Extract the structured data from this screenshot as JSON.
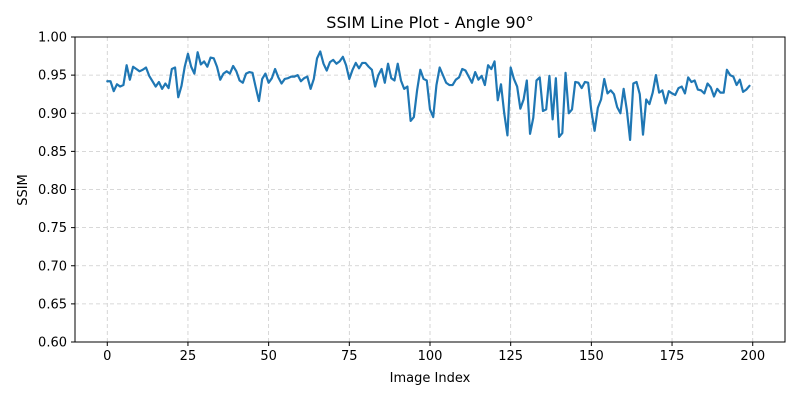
{
  "chart_data": {
    "type": "line",
    "title": "SSIM Line Plot - Angle 90°",
    "xlabel": "Image Index",
    "ylabel": "SSIM",
    "xlim": [
      -10,
      210
    ],
    "ylim": [
      0.6,
      1.0
    ],
    "xticks": [
      0,
      25,
      50,
      75,
      100,
      125,
      150,
      175,
      200
    ],
    "yticks": [
      0.6,
      0.65,
      0.7,
      0.75,
      0.8,
      0.85,
      0.9,
      0.95,
      1.0
    ],
    "ytick_labels": [
      "0.60",
      "0.65",
      "0.70",
      "0.75",
      "0.80",
      "0.85",
      "0.90",
      "0.95",
      "1.00"
    ],
    "grid": true,
    "grid_style": "dashed",
    "line_color": "#1f77b4",
    "series": [
      {
        "x_start": 0,
        "x_step": 1,
        "values": [
          0.942,
          0.942,
          0.929,
          0.938,
          0.935,
          0.937,
          0.963,
          0.944,
          0.961,
          0.958,
          0.955,
          0.957,
          0.96,
          0.949,
          0.942,
          0.935,
          0.941,
          0.932,
          0.939,
          0.933,
          0.958,
          0.96,
          0.921,
          0.936,
          0.961,
          0.978,
          0.961,
          0.952,
          0.98,
          0.964,
          0.968,
          0.961,
          0.973,
          0.972,
          0.961,
          0.944,
          0.952,
          0.955,
          0.952,
          0.962,
          0.955,
          0.943,
          0.94,
          0.952,
          0.954,
          0.953,
          0.934,
          0.916,
          0.945,
          0.952,
          0.94,
          0.946,
          0.958,
          0.947,
          0.939,
          0.945,
          0.946,
          0.948,
          0.948,
          0.95,
          0.942,
          0.946,
          0.948,
          0.932,
          0.945,
          0.972,
          0.981,
          0.965,
          0.956,
          0.967,
          0.97,
          0.965,
          0.968,
          0.974,
          0.963,
          0.945,
          0.957,
          0.966,
          0.959,
          0.966,
          0.966,
          0.961,
          0.957,
          0.935,
          0.95,
          0.958,
          0.94,
          0.965,
          0.946,
          0.943,
          0.965,
          0.943,
          0.932,
          0.935,
          0.89,
          0.895,
          0.93,
          0.957,
          0.945,
          0.943,
          0.905,
          0.895,
          0.937,
          0.96,
          0.95,
          0.94,
          0.937,
          0.937,
          0.944,
          0.947,
          0.958,
          0.956,
          0.948,
          0.94,
          0.954,
          0.944,
          0.949,
          0.937,
          0.963,
          0.958,
          0.968,
          0.917,
          0.938,
          0.9,
          0.871,
          0.96,
          0.945,
          0.935,
          0.906,
          0.918,
          0.943,
          0.873,
          0.894,
          0.943,
          0.947,
          0.903,
          0.905,
          0.949,
          0.892,
          0.946,
          0.869,
          0.874,
          0.953,
          0.9,
          0.905,
          0.941,
          0.94,
          0.933,
          0.941,
          0.94,
          0.903,
          0.877,
          0.907,
          0.918,
          0.945,
          0.926,
          0.93,
          0.925,
          0.908,
          0.9,
          0.932,
          0.904,
          0.865,
          0.939,
          0.941,
          0.925,
          0.872,
          0.918,
          0.912,
          0.927,
          0.95,
          0.927,
          0.93,
          0.913,
          0.929,
          0.926,
          0.924,
          0.933,
          0.935,
          0.926,
          0.947,
          0.941,
          0.943,
          0.931,
          0.93,
          0.926,
          0.939,
          0.934,
          0.922,
          0.932,
          0.927,
          0.927,
          0.957,
          0.95,
          0.948,
          0.937,
          0.944,
          0.928,
          0.931,
          0.936
        ]
      }
    ]
  }
}
